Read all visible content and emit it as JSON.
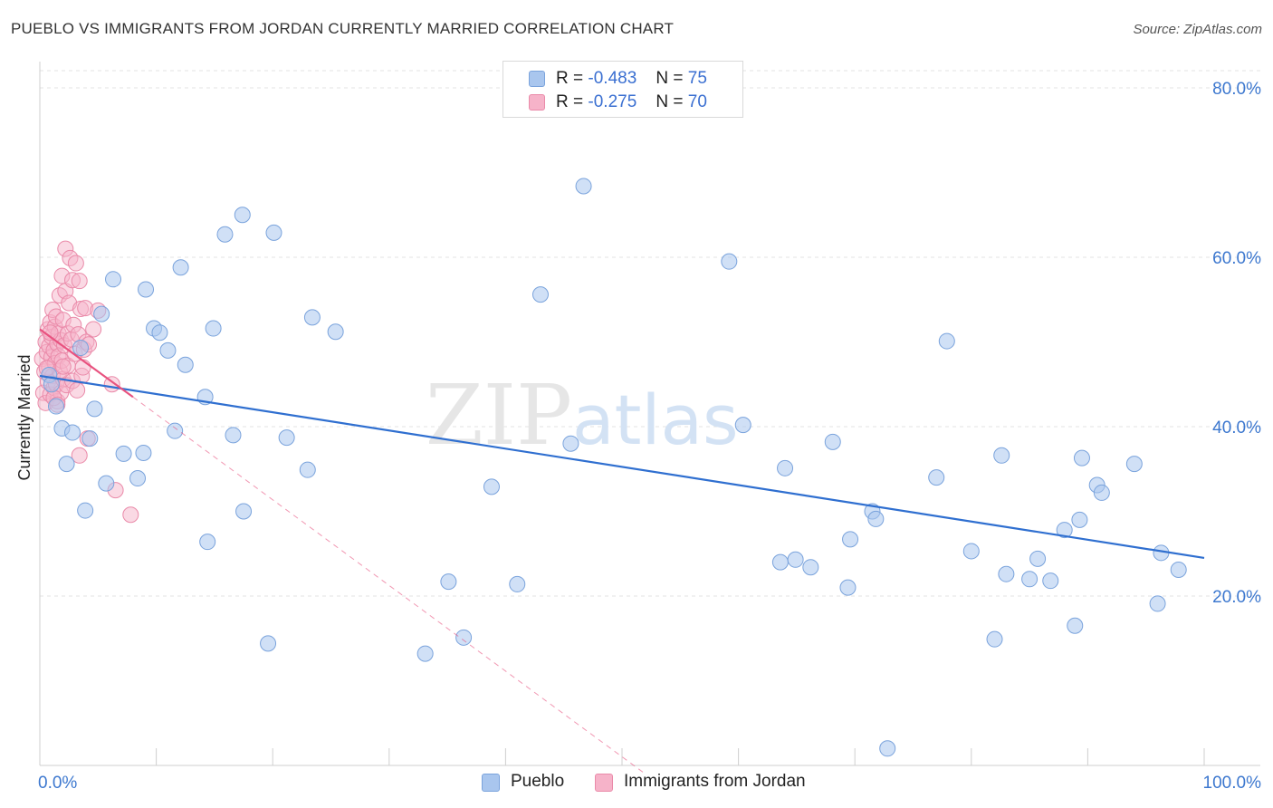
{
  "header": {
    "title": "PUEBLO VS IMMIGRANTS FROM JORDAN CURRENTLY MARRIED CORRELATION CHART",
    "source": "Source: ZipAtlas.com"
  },
  "legend": {
    "rows": [
      {
        "r_label": "R =",
        "r_value": "-0.483",
        "n_label": "N =",
        "n_value": "75"
      },
      {
        "r_label": "R =",
        "r_value": "-0.275",
        "n_label": "N =",
        "n_value": "70"
      }
    ]
  },
  "bottom_legend": {
    "items": [
      {
        "label": "Pueblo"
      },
      {
        "label": "Immigrants from Jordan"
      }
    ]
  },
  "watermark": {
    "zip": "ZIP",
    "atlas": "atlas"
  },
  "colors": {
    "pueblo_fill": "#a9c6ee",
    "pueblo_stroke": "#7aa3dc",
    "pueblo_line": "#2f6fd0",
    "jordan_fill": "#f6b3c9",
    "jordan_stroke": "#ea8aa9",
    "jordan_line": "#e8527f",
    "axis_label": "#3d78cf",
    "grid": "#e3e3e3"
  },
  "chart_data": {
    "type": "scatter",
    "title": "PUEBLO VS IMMIGRANTS FROM JORDAN CURRENTLY MARRIED CORRELATION CHART",
    "xlabel": "",
    "ylabel": "Currently Married",
    "xlim": [
      0,
      100
    ],
    "ylim": [
      0,
      82
    ],
    "x_tick_labels": [
      {
        "value": 0,
        "label": "0.0%"
      },
      {
        "value": 100,
        "label": "100.0%"
      }
    ],
    "x_minor_ticks": [
      10,
      20,
      30,
      40,
      50,
      60,
      70,
      80,
      90,
      100
    ],
    "y_ticks": [
      {
        "value": 20,
        "label": "20.0%"
      },
      {
        "value": 40,
        "label": "40.0%"
      },
      {
        "value": 60,
        "label": "60.0%"
      },
      {
        "value": 80,
        "label": "80.0%"
      }
    ],
    "grid": true,
    "series": [
      {
        "name": "Pueblo",
        "r": -0.483,
        "n": 75,
        "trend": {
          "x0": 0,
          "y0": 46.0,
          "x1": 100,
          "y1": 24.5
        },
        "points": [
          [
            0.8,
            46.1
          ],
          [
            1.4,
            42.4
          ],
          [
            1.9,
            39.8
          ],
          [
            2.3,
            35.6
          ],
          [
            2.8,
            39.3
          ],
          [
            3.5,
            49.3
          ],
          [
            3.9,
            30.1
          ],
          [
            4.3,
            38.6
          ],
          [
            4.7,
            42.1
          ],
          [
            5.3,
            53.3
          ],
          [
            5.7,
            33.3
          ],
          [
            6.3,
            57.4
          ],
          [
            7.2,
            36.8
          ],
          [
            8.4,
            33.9
          ],
          [
            8.9,
            36.9
          ],
          [
            9.1,
            56.2
          ],
          [
            9.8,
            51.6
          ],
          [
            10.3,
            51.1
          ],
          [
            11.0,
            49.0
          ],
          [
            11.6,
            39.5
          ],
          [
            12.1,
            58.8
          ],
          [
            12.5,
            47.3
          ],
          [
            14.2,
            43.5
          ],
          [
            14.4,
            26.4
          ],
          [
            14.9,
            51.6
          ],
          [
            15.9,
            62.7
          ],
          [
            16.6,
            39.0
          ],
          [
            17.4,
            65.0
          ],
          [
            17.5,
            30.0
          ],
          [
            19.6,
            14.4
          ],
          [
            20.1,
            62.9
          ],
          [
            21.2,
            38.7
          ],
          [
            23.0,
            34.9
          ],
          [
            23.4,
            52.9
          ],
          [
            25.4,
            51.2
          ],
          [
            33.1,
            13.2
          ],
          [
            35.1,
            21.7
          ],
          [
            36.4,
            15.1
          ],
          [
            38.8,
            32.9
          ],
          [
            41.0,
            21.4
          ],
          [
            43.0,
            55.6
          ],
          [
            45.6,
            38.0
          ],
          [
            46.7,
            68.4
          ],
          [
            59.2,
            59.5
          ],
          [
            60.4,
            40.2
          ],
          [
            63.6,
            24.0
          ],
          [
            64.0,
            35.1
          ],
          [
            64.9,
            24.3
          ],
          [
            66.2,
            23.4
          ],
          [
            68.1,
            38.2
          ],
          [
            69.4,
            21.0
          ],
          [
            69.6,
            26.7
          ],
          [
            71.5,
            30.0
          ],
          [
            71.8,
            29.1
          ],
          [
            72.8,
            2.0
          ],
          [
            77.0,
            34.0
          ],
          [
            77.9,
            50.1
          ],
          [
            80.0,
            25.3
          ],
          [
            82.0,
            14.9
          ],
          [
            82.6,
            36.6
          ],
          [
            83.0,
            22.6
          ],
          [
            85.0,
            22.0
          ],
          [
            85.7,
            24.4
          ],
          [
            86.8,
            21.8
          ],
          [
            88.0,
            27.8
          ],
          [
            88.9,
            16.5
          ],
          [
            89.3,
            29.0
          ],
          [
            89.5,
            36.3
          ],
          [
            90.8,
            33.1
          ],
          [
            91.2,
            32.2
          ],
          [
            94.0,
            35.6
          ],
          [
            96.0,
            19.1
          ],
          [
            96.3,
            25.1
          ],
          [
            97.8,
            23.1
          ],
          [
            1.0,
            45.0
          ]
        ]
      },
      {
        "name": "Immigrants from Jordan",
        "r": -0.275,
        "n": 70,
        "trend": {
          "x0": 0,
          "y0": 51.5,
          "x1": 8.0,
          "y1": 43.5,
          "dash_x1": 52.0,
          "dash_y1": -1.0
        },
        "points": [
          [
            0.2,
            48.0
          ],
          [
            0.3,
            44.0
          ],
          [
            0.4,
            46.5
          ],
          [
            0.5,
            50.0
          ],
          [
            0.5,
            42.8
          ],
          [
            0.6,
            48.8
          ],
          [
            0.7,
            45.3
          ],
          [
            0.7,
            51.5
          ],
          [
            0.8,
            47.0
          ],
          [
            0.8,
            49.5
          ],
          [
            0.9,
            43.8
          ],
          [
            0.9,
            52.3
          ],
          [
            1.0,
            48.2
          ],
          [
            1.0,
            50.6
          ],
          [
            1.1,
            46.0
          ],
          [
            1.1,
            53.8
          ],
          [
            1.2,
            44.6
          ],
          [
            1.2,
            49.0
          ],
          [
            1.3,
            51.8
          ],
          [
            1.3,
            47.5
          ],
          [
            1.4,
            45.0
          ],
          [
            1.4,
            53.0
          ],
          [
            1.5,
            49.8
          ],
          [
            1.5,
            43.0
          ],
          [
            1.6,
            48.3
          ],
          [
            1.6,
            51.0
          ],
          [
            1.7,
            46.6
          ],
          [
            1.7,
            55.5
          ],
          [
            1.8,
            44.0
          ],
          [
            1.8,
            50.2
          ],
          [
            1.9,
            57.8
          ],
          [
            1.9,
            47.8
          ],
          [
            2.0,
            52.6
          ],
          [
            2.0,
            45.6
          ],
          [
            2.1,
            49.6
          ],
          [
            2.2,
            56.0
          ],
          [
            2.2,
            61.0
          ],
          [
            2.3,
            44.9
          ],
          [
            2.4,
            51.0
          ],
          [
            2.4,
            47.2
          ],
          [
            2.5,
            54.6
          ],
          [
            2.6,
            59.9
          ],
          [
            2.7,
            50.3
          ],
          [
            2.8,
            57.3
          ],
          [
            2.8,
            45.4
          ],
          [
            2.9,
            52.0
          ],
          [
            3.0,
            48.6
          ],
          [
            3.1,
            59.3
          ],
          [
            3.2,
            44.3
          ],
          [
            3.3,
            50.9
          ],
          [
            3.4,
            57.2
          ],
          [
            3.4,
            36.6
          ],
          [
            3.5,
            53.9
          ],
          [
            3.6,
            46.0
          ],
          [
            3.7,
            47.0
          ],
          [
            3.8,
            49.1
          ],
          [
            3.9,
            54.0
          ],
          [
            4.0,
            50.0
          ],
          [
            4.1,
            38.6
          ],
          [
            4.2,
            49.7
          ],
          [
            4.6,
            51.5
          ],
          [
            5.0,
            53.7
          ],
          [
            6.2,
            45.0
          ],
          [
            6.5,
            32.5
          ],
          [
            7.8,
            29.6
          ],
          [
            1.2,
            43.4
          ],
          [
            0.6,
            46.9
          ],
          [
            0.9,
            51.1
          ],
          [
            1.5,
            42.6
          ],
          [
            2.0,
            47.1
          ]
        ]
      }
    ]
  }
}
